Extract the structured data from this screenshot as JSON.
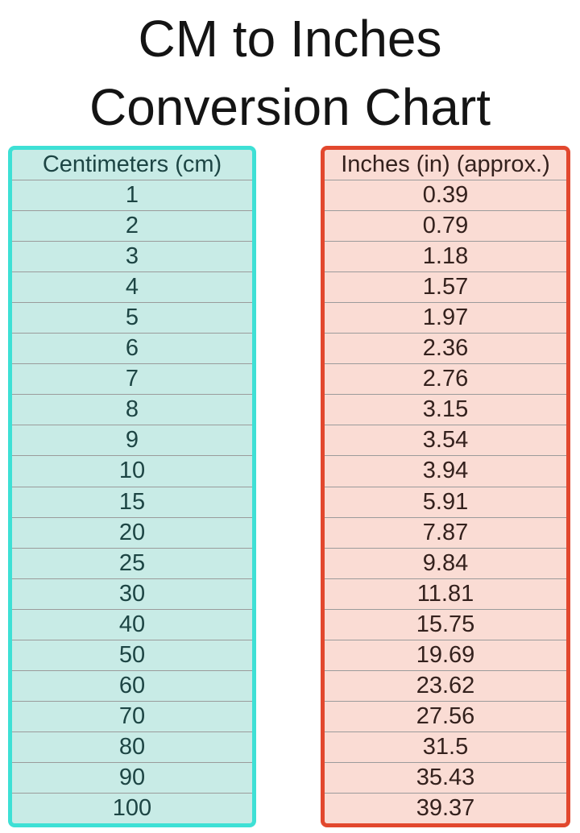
{
  "title": {
    "line1": "CM to Inches",
    "line2": "Conversion Chart"
  },
  "tables": {
    "cm_header": "Centimeters (cm)",
    "inches_header": "Inches (in) (approx.)"
  },
  "chart_data": {
    "type": "table",
    "title": "CM to Inches Conversion Chart",
    "columns": [
      "Centimeters (cm)",
      "Inches (in) (approx.)"
    ],
    "cm_values": [
      "1",
      "2",
      "3",
      "4",
      "5",
      "6",
      "7",
      "8",
      "9",
      "10",
      "15",
      "20",
      "25",
      "30",
      "40",
      "50",
      "60",
      "70",
      "80",
      "90",
      "100"
    ],
    "inch_values": [
      "0.39",
      "0.79",
      "1.18",
      "1.57",
      "1.97",
      "2.36",
      "2.76",
      "3.15",
      "3.54",
      "3.94",
      "5.91",
      "7.87",
      "9.84",
      "11.81",
      "15.75",
      "19.69",
      "23.62",
      "27.56",
      "31.5",
      "35.43",
      "39.37"
    ]
  },
  "colors": {
    "background": "#ffffff",
    "title_text": "#141414",
    "cyan_border": "#3ee0d5",
    "cyan_fill": "#c8ebe6",
    "cm_text": "#1d4544",
    "red_border": "#e2482e",
    "red_fill": "#fadcd4",
    "inches_text": "#34211d",
    "separator": "#9b9b9b"
  }
}
